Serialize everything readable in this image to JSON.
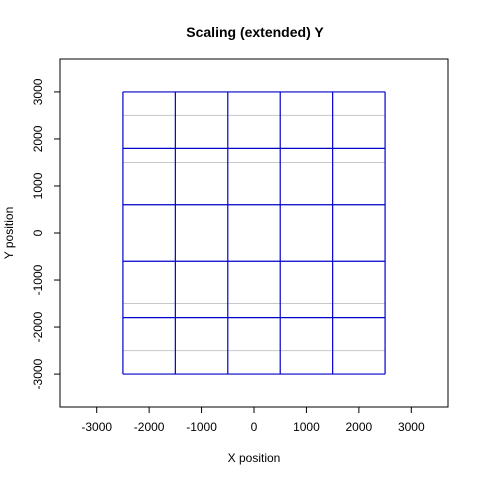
{
  "chart_data": {
    "type": "line",
    "title": "Scaling (extended) Y",
    "xlabel": "X position",
    "ylabel": "Y position",
    "xlim": [
      -3700,
      3700
    ],
    "ylim": [
      -3700,
      3700
    ],
    "x_ticks": [
      -3000,
      -2000,
      -1000,
      0,
      1000,
      2000,
      3000
    ],
    "y_ticks": [
      -3000,
      -2000,
      -1000,
      0,
      1000,
      2000,
      3000
    ],
    "gray_hlines": [
      2500,
      1500,
      -1500,
      -2500
    ],
    "gray_color": "#c8c8c8",
    "grid_color": "#0000cc",
    "grid": {
      "vertical_lines_x": [
        -2500,
        -1500,
        -500,
        500,
        1500,
        2500
      ],
      "horizontal_lines_y": [
        3000,
        1800,
        600,
        -600,
        -1800,
        -3000
      ],
      "x_extent": [
        -2500,
        2500
      ],
      "y_extent": [
        -3000,
        3000
      ]
    }
  }
}
